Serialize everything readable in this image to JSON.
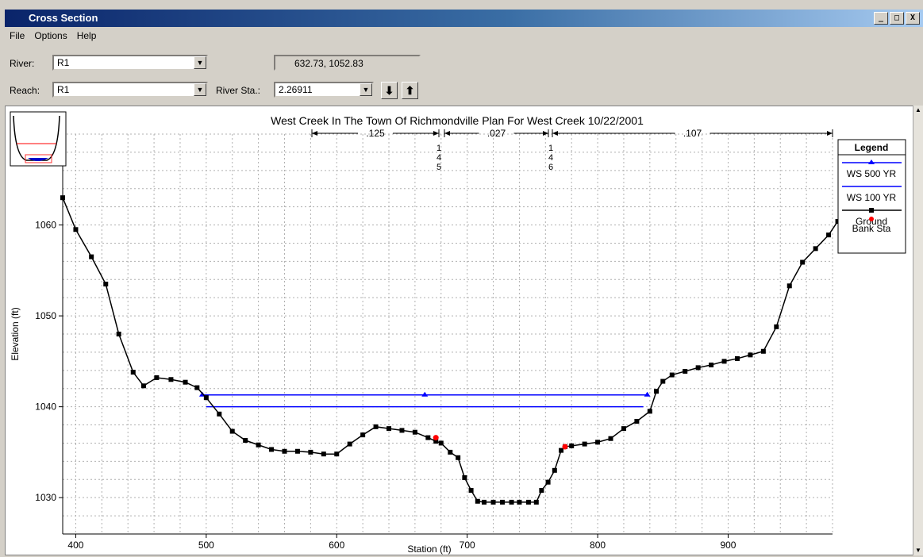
{
  "window": {
    "title": "Cross Section",
    "controls": [
      "_",
      "□",
      "X"
    ]
  },
  "menu": [
    "File",
    "Options",
    "Help"
  ],
  "river": {
    "label": "River:",
    "value": "R1"
  },
  "reach": {
    "label": "Reach:",
    "value": "R1"
  },
  "river_sta": {
    "label": "River Sta.:",
    "value": "2.26911"
  },
  "coordinates": "632.73, 1052.83",
  "nav": {
    "down": "⬇",
    "up": "⬆"
  },
  "chart_title": "West Creek In The Town Of Richmondville    Plan For West Creek     10/22/2001",
  "mannings": [
    {
      "label": ".125"
    },
    {
      "label": ".027"
    },
    {
      "label": ".107"
    }
  ],
  "ineffective_markers": [
    {
      "digits": [
        "1",
        "4",
        "5"
      ]
    },
    {
      "digits": [
        "1",
        "4",
        "6"
      ]
    }
  ],
  "legend": {
    "title": "Legend",
    "entries": [
      {
        "label": "WS 500 YR",
        "color": "#0000ff",
        "marker": "triangle"
      },
      {
        "label": "WS 100 YR",
        "color": "#0000ff",
        "marker": "none"
      },
      {
        "label": "Ground",
        "color": "#000000",
        "marker": "square"
      },
      {
        "label": "Bank Sta",
        "color": "#ff0000",
        "marker": "dot"
      }
    ]
  },
  "chart_data": {
    "type": "line",
    "xlabel": "Station (ft)",
    "ylabel": "Elevation (ft)",
    "xlim": [
      390,
      980
    ],
    "ylim": [
      1026,
      1070
    ],
    "xticks": [
      400,
      500,
      600,
      700,
      800,
      900
    ],
    "yticks": [
      1030,
      1040,
      1050,
      1060
    ],
    "grid": true,
    "legend_position": "right",
    "series": [
      {
        "name": "Ground",
        "color": "#000000",
        "points": [
          [
            390,
            1063
          ],
          [
            400,
            1059.5
          ],
          [
            412,
            1056.5
          ],
          [
            423,
            1053.5
          ],
          [
            433,
            1048
          ],
          [
            444,
            1043.8
          ],
          [
            452,
            1042.3
          ],
          [
            462,
            1043.2
          ],
          [
            473,
            1043
          ],
          [
            484,
            1042.7
          ],
          [
            493,
            1042.1
          ],
          [
            500,
            1041
          ],
          [
            510,
            1039.2
          ],
          [
            520,
            1037.3
          ],
          [
            530,
            1036.3
          ],
          [
            540,
            1035.8
          ],
          [
            550,
            1035.3
          ],
          [
            560,
            1035.1
          ],
          [
            570,
            1035.1
          ],
          [
            580,
            1035
          ],
          [
            590,
            1034.8
          ],
          [
            600,
            1034.8
          ],
          [
            610,
            1035.9
          ],
          [
            620,
            1036.9
          ],
          [
            630,
            1037.8
          ],
          [
            640,
            1037.6
          ],
          [
            650,
            1037.4
          ],
          [
            660,
            1037.2
          ],
          [
            670,
            1036.6
          ],
          [
            676,
            1036.2
          ],
          [
            680,
            1036
          ],
          [
            687,
            1035
          ],
          [
            693,
            1034.4
          ],
          [
            698,
            1032.2
          ],
          [
            703,
            1030.8
          ],
          [
            708,
            1029.6
          ],
          [
            713,
            1029.5
          ],
          [
            720,
            1029.5
          ],
          [
            727,
            1029.5
          ],
          [
            734,
            1029.5
          ],
          [
            740,
            1029.5
          ],
          [
            747,
            1029.5
          ],
          [
            753,
            1029.5
          ],
          [
            757,
            1030.8
          ],
          [
            762,
            1031.7
          ],
          [
            767,
            1033
          ],
          [
            772,
            1035.2
          ],
          [
            775,
            1035.6
          ],
          [
            780,
            1035.7
          ],
          [
            790,
            1035.9
          ],
          [
            800,
            1036.1
          ],
          [
            810,
            1036.5
          ],
          [
            820,
            1037.6
          ],
          [
            830,
            1038.4
          ],
          [
            840,
            1039.5
          ],
          [
            845,
            1041.7
          ],
          [
            850,
            1042.8
          ],
          [
            857,
            1043.5
          ],
          [
            867,
            1043.9
          ],
          [
            877,
            1044.3
          ],
          [
            887,
            1044.6
          ],
          [
            897,
            1045
          ],
          [
            907,
            1045.3
          ],
          [
            917,
            1045.7
          ],
          [
            927,
            1046.1
          ],
          [
            937,
            1048.8
          ],
          [
            947,
            1053.3
          ],
          [
            957,
            1055.9
          ],
          [
            967,
            1057.4
          ],
          [
            977,
            1058.9
          ],
          [
            984,
            1060.4
          ]
        ]
      },
      {
        "name": "WS 500 YR",
        "color": "#0000ff",
        "points": [
          [
            497,
            1041.3
          ],
          [
            838,
            1041.3
          ]
        ]
      },
      {
        "name": "WS 100 YR",
        "color": "#0000ff",
        "points": [
          [
            500,
            1040
          ],
          [
            835,
            1040
          ]
        ]
      },
      {
        "name": "Bank Sta",
        "color": "#ff0000",
        "points": [
          [
            676,
            1036.6
          ],
          [
            775,
            1035.6
          ]
        ]
      }
    ]
  }
}
